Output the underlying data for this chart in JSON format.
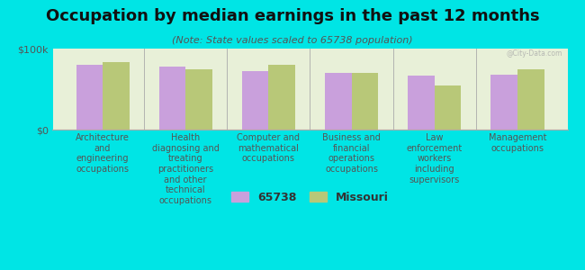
{
  "title": "Occupation by median earnings in the past 12 months",
  "subtitle": "(Note: State values scaled to 65738 population)",
  "background_color": "#00e5e5",
  "plot_bg_color": "#e8f0d8",
  "categories": [
    "Architecture\nand\nengineering\noccupations",
    "Health\ndiagnosing and\ntreating\npractitioners\nand other\ntechnical\noccupations",
    "Computer and\nmathematical\noccupations",
    "Business and\nfinancial\noperations\noccupations",
    "Law\nenforcement\nworkers\nincluding\nsupervisors",
    "Management\noccupations"
  ],
  "values_65738": [
    80000,
    78000,
    72000,
    70000,
    67000,
    68000
  ],
  "values_missouri": [
    83000,
    74000,
    80000,
    70000,
    55000,
    74000
  ],
  "color_65738": "#c9a0dc",
  "color_missouri": "#b8c878",
  "ylim": [
    0,
    100000
  ],
  "ytick_labels": [
    "$0",
    "$100k"
  ],
  "legend_label_65738": "65738",
  "legend_label_missouri": "Missouri",
  "watermark": "@City-Data.com",
  "title_fontsize": 13,
  "subtitle_fontsize": 8,
  "tick_label_fontsize": 7,
  "ytick_fontsize": 8
}
